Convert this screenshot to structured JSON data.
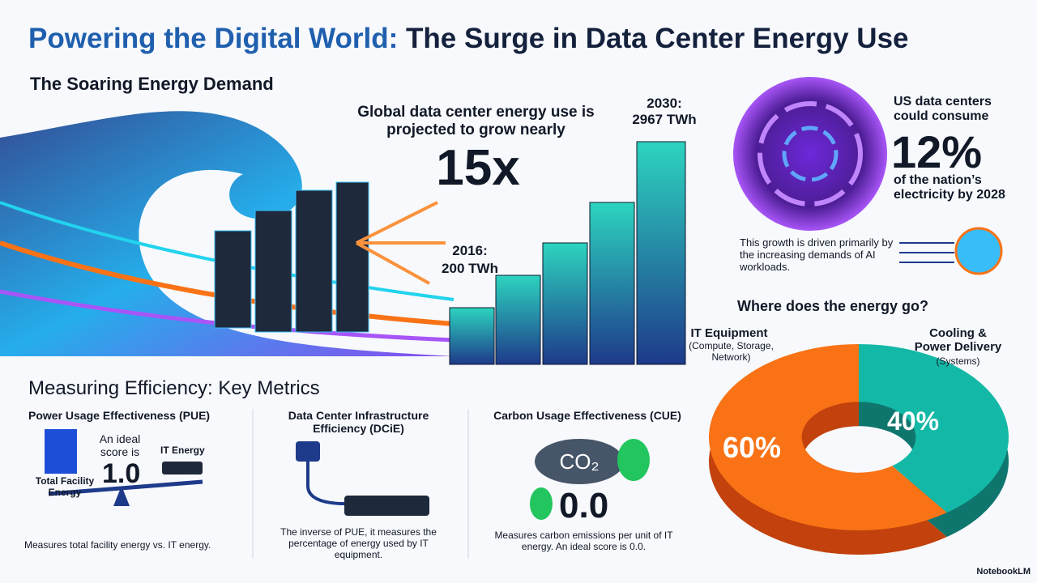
{
  "title": {
    "lead": "Powering the Digital World:",
    "rest": "The Surge in Data Center Energy Use"
  },
  "demand": {
    "heading": "The Soaring Energy Demand",
    "growth_text": "Global data center energy use is projected to grow nearly",
    "growth_value": "15x",
    "start_label": "2016:",
    "start_value": "200 TWh",
    "end_label": "2030:",
    "end_value": "2967 TWh"
  },
  "us": {
    "lead": "US data centers could consume",
    "value": "12%",
    "tail": "of the nation’s electricity by 2028",
    "driver": "This growth is driven primarily by the increasing demands of AI workloads."
  },
  "energy": {
    "heading": "Where does the energy go?",
    "it_label": "IT Equipment",
    "it_detail": "(Compute, Storage, Network)",
    "it_value": "60%",
    "cooling_label": "Cooling & Power Delivery",
    "cooling_detail": "(Systems)",
    "cooling_value": "40%"
  },
  "metrics": {
    "heading": "Measuring Efficiency: Key Metrics",
    "items": [
      {
        "name": "Power Usage Effectiveness (PUE)",
        "ideal_text": "An ideal score is",
        "value": "1.0",
        "left_label": "Total Facility Energy",
        "right_label": "IT Energy",
        "description": "Measures total facility energy vs. IT energy."
      },
      {
        "name": "Data Center Infrastructure Efficiency (DCiE)",
        "description": "The inverse of PUE, it measures the percentage of energy used by IT equipment."
      },
      {
        "name": "Carbon Usage Effectiveness (CUE)",
        "icon_text": "CO₂",
        "value": "0.0",
        "description": "Measures carbon emissions per unit of IT energy. An ideal score is 0.0."
      }
    ]
  },
  "footer": {
    "brand": "NotebookLM"
  }
}
